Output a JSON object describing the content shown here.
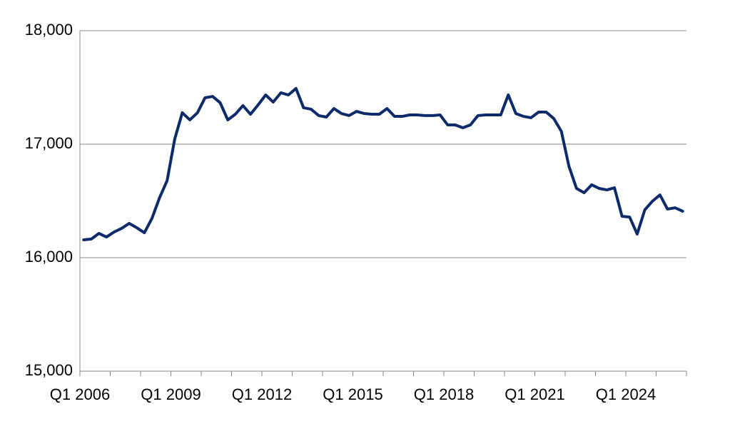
{
  "chart_data": {
    "type": "line",
    "categories": [
      "Q1 2006",
      null,
      null,
      null,
      null,
      null,
      null,
      null,
      null,
      null,
      null,
      null,
      "Q1 2009",
      null,
      null,
      null,
      null,
      null,
      null,
      null,
      null,
      null,
      null,
      null,
      "Q1 2012",
      null,
      null,
      null,
      null,
      null,
      null,
      null,
      null,
      null,
      null,
      null,
      "Q1 2015",
      null,
      null,
      null,
      null,
      null,
      null,
      null,
      null,
      null,
      null,
      null,
      "Q1 2018",
      null,
      null,
      null,
      null,
      null,
      null,
      null,
      null,
      null,
      null,
      null,
      "Q1 2021",
      null,
      null,
      null,
      null,
      null,
      null,
      null,
      null,
      null,
      null,
      null,
      "Q1 2024",
      null,
      null,
      null,
      null,
      null,
      null,
      null
    ],
    "series": [
      {
        "color": "#0d2a6b",
        "values": [
          16157,
          16164,
          16214,
          16182,
          16226,
          16258,
          16302,
          16264,
          16220,
          16346,
          16528,
          16679,
          17044,
          17277,
          17214,
          17277,
          17409,
          17421,
          17365,
          17214,
          17264,
          17340,
          17264,
          17346,
          17434,
          17371,
          17453,
          17434,
          17491,
          17321,
          17308,
          17252,
          17239,
          17314,
          17270,
          17252,
          17289,
          17270,
          17264,
          17264,
          17314,
          17245,
          17245,
          17258,
          17258,
          17252,
          17252,
          17258,
          17170,
          17170,
          17145,
          17170,
          17252,
          17258,
          17258,
          17258,
          17434,
          17270,
          17245,
          17233,
          17283,
          17283,
          17226,
          17113,
          16805,
          16610,
          16572,
          16642,
          16610,
          16597,
          16616,
          16365,
          16358,
          16208,
          16421,
          16497,
          16553,
          16428,
          16440,
          16409
        ]
      }
    ],
    "ylim": [
      15000,
      18000
    ],
    "yticks": [
      {
        "value": 15000,
        "label": "15,000"
      },
      {
        "value": 16000,
        "label": "16,000"
      },
      {
        "value": 17000,
        "label": "17,000"
      },
      {
        "value": 18000,
        "label": "18,000"
      }
    ],
    "grid": true
  }
}
